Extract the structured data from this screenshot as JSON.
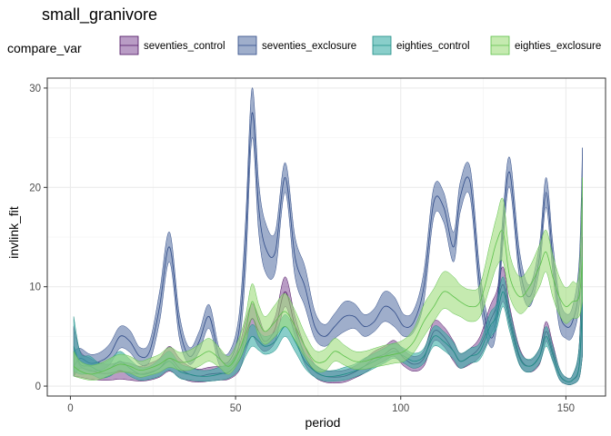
{
  "chart_data": {
    "type": "area",
    "title": "small_granivore",
    "xlabel": "period",
    "ylabel": "invlink_fit",
    "xlim": [
      -7,
      162
    ],
    "ylim": [
      -1,
      31
    ],
    "xticks": [
      0,
      50,
      100,
      150
    ],
    "yticks": [
      0,
      10,
      20,
      30
    ],
    "grid": true,
    "legend": {
      "title": "compare_var",
      "position": "top"
    },
    "x": [
      1,
      3,
      6,
      9,
      12,
      15,
      18,
      21,
      24,
      27,
      30,
      33,
      36,
      39,
      42,
      45,
      48,
      51,
      53,
      55,
      57,
      59,
      62,
      65,
      68,
      71,
      74,
      77,
      80,
      83,
      86,
      89,
      92,
      95,
      98,
      101,
      104,
      107,
      110,
      113,
      116,
      118,
      121,
      124,
      127,
      129,
      131,
      133,
      136,
      139,
      142,
      144,
      146,
      148,
      150,
      152,
      154,
      155
    ],
    "series": [
      {
        "name": "seventies_control",
        "color": "#4b0f5f",
        "fill": "#8b5a9e",
        "mid": [
          3.5,
          2.0,
          1.6,
          1.3,
          1.3,
          1.5,
          1.4,
          1.2,
          1.4,
          1.8,
          2.8,
          1.8,
          1.2,
          1.0,
          1.2,
          1.3,
          1.4,
          2.8,
          5.0,
          6.8,
          5.5,
          4.5,
          5.8,
          9.5,
          6.0,
          3.0,
          1.5,
          1.0,
          0.9,
          1.0,
          1.4,
          2.0,
          2.8,
          3.2,
          3.8,
          2.8,
          2.2,
          2.8,
          5.5,
          5.0,
          3.5,
          2.5,
          3.0,
          4.0,
          6.5,
          8.0,
          10.2,
          7.0,
          3.0,
          2.0,
          3.0,
          5.5,
          3.5,
          1.2,
          0.5,
          0.6,
          2.0,
          9.0
        ],
        "lower": [
          1.0,
          0.9,
          0.7,
          0.6,
          0.6,
          0.7,
          0.6,
          0.5,
          0.6,
          0.9,
          1.5,
          0.9,
          0.5,
          0.4,
          0.5,
          0.6,
          0.7,
          1.5,
          3.5,
          5.0,
          4.0,
          3.5,
          4.5,
          8.0,
          5.0,
          2.2,
          0.9,
          0.4,
          0.3,
          0.4,
          0.8,
          1.3,
          2.0,
          2.5,
          3.0,
          2.0,
          1.5,
          2.0,
          4.5,
          4.0,
          2.5,
          1.8,
          2.2,
          3.0,
          5.0,
          6.5,
          8.5,
          6.0,
          2.2,
          1.4,
          2.2,
          4.5,
          2.7,
          0.7,
          0.2,
          0.2,
          0.8,
          3.0
        ],
        "upper": [
          6.0,
          3.5,
          2.8,
          2.3,
          2.2,
          2.4,
          2.3,
          2.0,
          2.3,
          2.8,
          4.0,
          2.8,
          2.0,
          1.7,
          1.9,
          2.0,
          2.2,
          4.0,
          6.5,
          8.3,
          7.0,
          5.5,
          7.0,
          11.0,
          7.0,
          4.0,
          2.2,
          1.6,
          1.5,
          1.6,
          2.0,
          2.7,
          3.5,
          4.0,
          4.6,
          3.6,
          3.0,
          3.6,
          6.5,
          6.0,
          4.5,
          3.3,
          3.8,
          5.0,
          8.0,
          9.5,
          12.0,
          8.0,
          3.8,
          2.6,
          3.8,
          6.5,
          4.3,
          1.8,
          0.9,
          1.1,
          4.0,
          15.0
        ]
      },
      {
        "name": "seventies_exclosure",
        "color": "#2e4a87",
        "fill": "#5f78a8",
        "mid": [
          2.0,
          2.8,
          2.3,
          2.5,
          3.2,
          5.0,
          4.5,
          3.0,
          3.5,
          8.0,
          14.0,
          6.0,
          3.0,
          4.5,
          7.0,
          3.0,
          2.5,
          5.5,
          14.0,
          27.5,
          18.0,
          14.0,
          13.5,
          21.0,
          13.0,
          10.0,
          6.0,
          5.0,
          6.0,
          7.0,
          7.0,
          6.0,
          6.5,
          8.0,
          7.5,
          6.0,
          6.5,
          10.0,
          18.5,
          18.0,
          14.0,
          19.0,
          20.5,
          10.0,
          5.0,
          7.0,
          16.0,
          21.5,
          12.0,
          9.0,
          13.0,
          19.5,
          13.0,
          7.5,
          6.0,
          6.5,
          10.0,
          19.0
        ],
        "lower": [
          1.0,
          1.8,
          1.5,
          1.6,
          2.2,
          3.8,
          3.4,
          2.2,
          2.5,
          6.5,
          12.5,
          4.8,
          2.2,
          3.5,
          5.8,
          2.2,
          1.7,
          4.0,
          11.5,
          25.0,
          15.5,
          11.5,
          11.5,
          19.5,
          11.0,
          8.0,
          4.8,
          4.0,
          4.8,
          5.5,
          5.8,
          5.0,
          5.5,
          6.5,
          6.0,
          5.0,
          5.5,
          8.5,
          17.0,
          16.5,
          12.5,
          17.5,
          19.0,
          8.5,
          4.0,
          5.8,
          14.5,
          20.0,
          10.8,
          8.0,
          11.8,
          18.0,
          11.5,
          6.0,
          4.8,
          5.0,
          8.0,
          14.0
        ],
        "upper": [
          3.5,
          3.8,
          3.2,
          3.4,
          4.3,
          6.0,
          5.6,
          3.9,
          4.5,
          9.5,
          15.5,
          7.2,
          3.9,
          5.5,
          8.2,
          3.9,
          3.4,
          7.0,
          16.5,
          30.0,
          20.5,
          16.5,
          15.5,
          22.5,
          15.0,
          12.0,
          7.5,
          6.2,
          7.3,
          8.5,
          8.3,
          7.2,
          7.8,
          9.5,
          9.0,
          7.2,
          7.7,
          11.5,
          20.0,
          19.5,
          15.5,
          20.5,
          22.0,
          11.5,
          6.2,
          8.3,
          17.5,
          23.0,
          13.5,
          10.2,
          14.3,
          21.0,
          14.5,
          9.0,
          7.3,
          8.0,
          12.5,
          24.0
        ]
      },
      {
        "name": "eighties_control",
        "color": "#1e8c84",
        "fill": "#3aaea6",
        "mid": [
          4.0,
          2.2,
          2.0,
          1.5,
          1.8,
          2.5,
          1.8,
          1.2,
          1.3,
          1.8,
          2.5,
          1.5,
          1.2,
          1.0,
          1.0,
          1.2,
          1.5,
          2.5,
          4.0,
          5.0,
          4.5,
          4.0,
          4.5,
          6.0,
          4.5,
          2.5,
          1.5,
          1.0,
          1.0,
          1.2,
          1.5,
          2.0,
          2.5,
          3.0,
          3.5,
          3.0,
          2.5,
          3.0,
          5.0,
          4.5,
          3.5,
          2.5,
          3.0,
          3.5,
          6.0,
          7.0,
          9.5,
          6.5,
          2.8,
          2.0,
          3.0,
          5.0,
          3.2,
          1.2,
          0.5,
          0.6,
          2.0,
          8.0
        ],
        "lower": [
          1.5,
          1.2,
          1.2,
          0.8,
          1.0,
          1.6,
          1.0,
          0.6,
          0.7,
          1.0,
          1.6,
          0.8,
          0.6,
          0.5,
          0.5,
          0.6,
          0.8,
          1.6,
          3.0,
          4.0,
          3.6,
          3.2,
          3.6,
          5.0,
          3.5,
          1.8,
          0.9,
          0.5,
          0.5,
          0.6,
          0.9,
          1.3,
          1.8,
          2.3,
          2.8,
          2.3,
          1.8,
          2.3,
          4.0,
          3.6,
          2.7,
          1.8,
          2.3,
          2.7,
          4.8,
          5.8,
          8.0,
          5.5,
          2.1,
          1.4,
          2.3,
          4.0,
          2.5,
          0.7,
          0.2,
          0.2,
          0.8,
          3.0
        ],
        "upper": [
          7.0,
          3.4,
          3.0,
          2.3,
          2.7,
          3.5,
          2.7,
          1.9,
          2.0,
          2.7,
          3.5,
          2.3,
          1.9,
          1.6,
          1.6,
          1.9,
          2.3,
          3.5,
          5.0,
          6.2,
          5.5,
          5.0,
          5.5,
          7.2,
          5.6,
          3.3,
          2.2,
          1.6,
          1.6,
          1.9,
          2.2,
          2.8,
          3.3,
          3.8,
          4.3,
          3.8,
          3.3,
          3.8,
          6.0,
          5.5,
          4.4,
          3.3,
          3.8,
          4.4,
          7.3,
          8.3,
          11.0,
          7.6,
          3.6,
          2.7,
          3.8,
          6.0,
          4.0,
          1.8,
          0.9,
          1.1,
          4.0,
          13.0
        ]
      },
      {
        "name": "eighties_exclosure",
        "color": "#5cc04a",
        "fill": "#9edc7c",
        "mid": [
          2.0,
          1.5,
          1.2,
          1.4,
          1.8,
          2.2,
          2.0,
          1.6,
          1.8,
          2.2,
          2.8,
          2.4,
          2.5,
          3.0,
          3.5,
          2.8,
          2.0,
          3.5,
          5.5,
          8.5,
          6.5,
          5.5,
          6.5,
          7.5,
          6.0,
          4.0,
          2.5,
          2.5,
          3.5,
          3.0,
          2.5,
          2.5,
          2.8,
          3.0,
          3.2,
          3.5,
          4.5,
          6.5,
          8.0,
          9.5,
          9.0,
          8.5,
          8.0,
          8.5,
          12.0,
          14.5,
          15.5,
          11.0,
          9.0,
          10.0,
          12.0,
          13.5,
          11.0,
          9.0,
          8.0,
          8.5,
          9.0,
          12.5
        ],
        "lower": [
          1.0,
          0.8,
          0.6,
          0.7,
          1.1,
          1.4,
          1.3,
          0.9,
          1.1,
          1.4,
          1.9,
          1.6,
          1.6,
          2.0,
          2.5,
          1.9,
          1.2,
          2.5,
          4.2,
          6.8,
          5.0,
          4.2,
          5.0,
          6.0,
          4.6,
          2.9,
          1.6,
          1.5,
          2.5,
          2.1,
          1.7,
          1.7,
          1.9,
          2.1,
          2.3,
          2.5,
          3.4,
          5.0,
          6.5,
          7.8,
          7.3,
          7.0,
          6.5,
          7.0,
          10.0,
          12.0,
          12.5,
          9.0,
          7.3,
          8.2,
          10.0,
          11.5,
          9.0,
          7.2,
          6.3,
          6.8,
          7.0,
          8.5
        ],
        "upper": [
          3.5,
          2.5,
          2.1,
          2.3,
          2.8,
          3.2,
          3.0,
          2.5,
          2.8,
          3.2,
          3.9,
          3.4,
          3.6,
          4.2,
          4.8,
          3.9,
          3.0,
          4.8,
          7.0,
          10.3,
          8.2,
          7.0,
          8.2,
          9.3,
          7.6,
          5.3,
          3.6,
          3.7,
          4.8,
          4.1,
          3.5,
          3.5,
          3.8,
          4.1,
          4.3,
          4.7,
          5.8,
          8.2,
          9.8,
          11.5,
          11.0,
          10.2,
          9.7,
          10.2,
          14.3,
          17.0,
          18.8,
          13.3,
          11.0,
          12.0,
          14.2,
          15.7,
          13.2,
          11.0,
          9.9,
          10.5,
          11.3,
          21.0
        ]
      }
    ]
  }
}
